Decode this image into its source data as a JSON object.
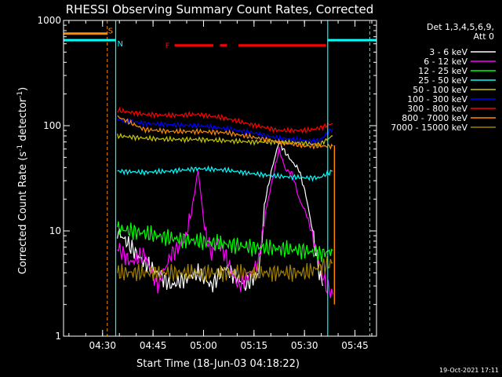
{
  "chart_data": {
    "type": "line",
    "title": "RHESSI Observing Summary Count Rates, Corrected",
    "xlabel": "Start Time (18-Jun-03 04:18:22)",
    "ylabel": "Corrected Count Rate (s⁻¹ detector⁻¹)",
    "yscale": "log",
    "ylim": [
      1,
      1000
    ],
    "xlim_minutes": [
      0,
      93
    ],
    "xticks": [
      {
        "label": "04:30",
        "t": 11.6
      },
      {
        "label": "04:45",
        "t": 26.6
      },
      {
        "label": "05:00",
        "t": 41.6
      },
      {
        "label": "05:15",
        "t": 56.6
      },
      {
        "label": "05:30",
        "t": 71.6
      },
      {
        "label": "05:45",
        "t": 86.6
      }
    ],
    "yticks": [
      {
        "label": "1",
        "v": 1
      },
      {
        "label": "10",
        "v": 10
      },
      {
        "label": "100",
        "v": 100
      },
      {
        "label": "1000",
        "v": 1000
      }
    ],
    "legend_header": [
      "Det 1,3,4,5,6,9,",
      "Att 0"
    ],
    "legend_position": "right",
    "series": [
      {
        "name": "3 - 6 keV",
        "color": "#ffffff",
        "x": [
          16,
          20,
          24,
          28,
          32,
          36,
          40,
          44,
          48,
          52,
          54,
          56,
          58,
          60,
          62,
          64,
          66,
          68,
          70,
          72,
          74,
          76,
          77
        ],
        "values": [
          10,
          7,
          5,
          4,
          3,
          3.5,
          4,
          3,
          4.5,
          3.5,
          3,
          3.5,
          4,
          20,
          40,
          70,
          55,
          45,
          38,
          22,
          10,
          4,
          3
        ]
      },
      {
        "name": "6 - 12 keV",
        "color": "#ff00ff",
        "x": [
          16,
          20,
          24,
          28,
          32,
          36,
          38,
          40,
          42,
          44,
          46,
          48,
          50,
          52,
          54,
          56,
          58,
          60,
          62,
          64,
          66,
          68,
          70,
          72,
          74,
          76,
          78,
          80
        ],
        "values": [
          7,
          5,
          6,
          3,
          6,
          8,
          15,
          38,
          10,
          6,
          8,
          6,
          4,
          3,
          3.5,
          4,
          5,
          15,
          30,
          60,
          38,
          35,
          20,
          15,
          9,
          5,
          3,
          2.5
        ]
      },
      {
        "name": "12 - 25 keV",
        "color": "#00ff00",
        "x": [
          16,
          24,
          32,
          40,
          48,
          56,
          64,
          72,
          76,
          80
        ],
        "values": [
          10.5,
          9.5,
          8.5,
          8,
          7.5,
          7,
          6.8,
          6.5,
          6,
          6.5
        ]
      },
      {
        "name": "25 - 50 keV",
        "color": "#00ffff",
        "x": [
          16,
          24,
          32,
          40,
          48,
          56,
          64,
          72,
          76,
          80
        ],
        "values": [
          37,
          36,
          37,
          39,
          38,
          35,
          33,
          32,
          32,
          37
        ]
      },
      {
        "name": "50 - 100 keV",
        "color": "#c8c800",
        "x": [
          16,
          24,
          32,
          40,
          48,
          56,
          64,
          72,
          76,
          80
        ],
        "values": [
          80,
          76,
          74,
          74,
          72,
          70,
          70,
          68,
          66,
          80
        ]
      },
      {
        "name": "100 - 300 keV",
        "color": "#0000ff",
        "x": [
          16,
          24,
          32,
          40,
          48,
          56,
          64,
          72,
          76,
          80
        ],
        "values": [
          115,
          105,
          102,
          100,
          94,
          86,
          76,
          72,
          72,
          95
        ]
      },
      {
        "name": "300 - 800 keV",
        "color": "#ff0000",
        "x": [
          16,
          24,
          32,
          40,
          48,
          56,
          64,
          72,
          76,
          80
        ],
        "values": [
          140,
          128,
          125,
          128,
          118,
          102,
          90,
          90,
          95,
          105
        ]
      },
      {
        "name": "800 - 7000 keV",
        "color": "#ff8c00",
        "x": [
          16,
          24,
          32,
          40,
          48,
          56,
          64,
          72,
          76,
          80
        ],
        "values": [
          122,
          92,
          88,
          88,
          86,
          78,
          70,
          64,
          64,
          64
        ]
      },
      {
        "name": "7000 - 15000 keV",
        "color": "#a08000",
        "x": [
          16,
          24,
          32,
          40,
          48,
          56,
          64,
          72,
          76,
          80
        ],
        "values": [
          4,
          4,
          4,
          4,
          4,
          4,
          4,
          4,
          4.5,
          5
        ]
      }
    ],
    "flag_lines": [
      {
        "label": "S",
        "color": "#ff8c00",
        "value": 750,
        "x": [
          0,
          13
        ],
        "dashed_vertical_at": 13
      },
      {
        "label": "N",
        "color": "#00ffff",
        "value": 650,
        "x": [
          0,
          15.5
        ],
        "solid_vertical_at": 15.5
      },
      {
        "label": "N_right",
        "color": "#00ffff",
        "value": 650,
        "x": [
          78.5,
          93
        ],
        "solid_vertical_at": 78.5,
        "dashed_vertical_at": 91
      },
      {
        "label": "F",
        "color": "#ff0000",
        "value": 580,
        "segments": [
          [
            33,
            44.5
          ],
          [
            46.5,
            48.5
          ],
          [
            52,
            78
          ]
        ]
      }
    ],
    "orange_drop_at": 80.5,
    "grid": false
  },
  "footer": {
    "timestamp": "19-Oct-2021 17:11"
  }
}
